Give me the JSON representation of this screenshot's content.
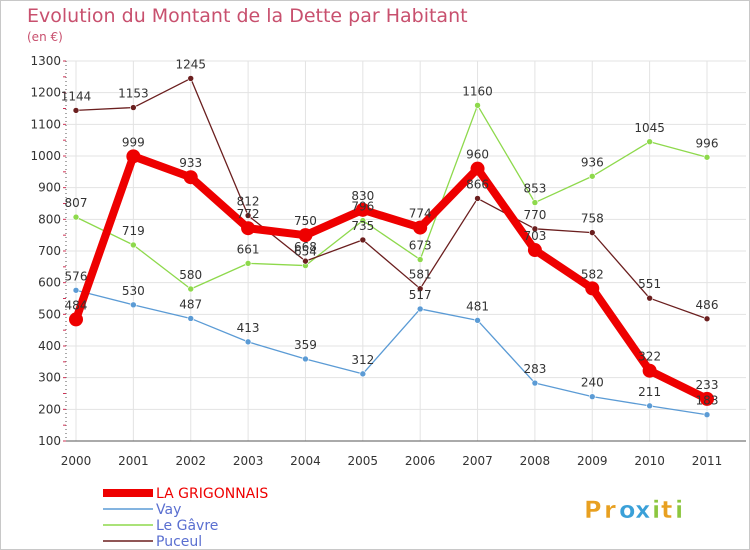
{
  "chart_data": {
    "type": "line",
    "title": "Evolution du Montant de la Dette par Habitant",
    "subtitle": "(en €)",
    "xlabel": "",
    "ylabel": "",
    "categories": [
      "2000",
      "2001",
      "2002",
      "2003",
      "2004",
      "2005",
      "2006",
      "2007",
      "2008",
      "2009",
      "2010",
      "2011"
    ],
    "ylim": [
      100,
      1300
    ],
    "yticks": [
      100,
      200,
      300,
      400,
      500,
      600,
      700,
      800,
      900,
      1000,
      1100,
      1200,
      1300
    ],
    "grid": true,
    "legend_position": "bottom-left",
    "series": [
      {
        "name": "LA GRIGONNAIS",
        "color": "#ee0000",
        "values": [
          484,
          999,
          933,
          772,
          750,
          830,
          774,
          960,
          703,
          582,
          322,
          233
        ]
      },
      {
        "name": "Vay",
        "color": "#5b9bd5",
        "values": [
          576,
          530,
          487,
          413,
          359,
          312,
          517,
          481,
          283,
          240,
          211,
          183
        ]
      },
      {
        "name": "Le Gâvre",
        "color": "#8ed94c",
        "values": [
          807,
          719,
          580,
          661,
          654,
          796,
          673,
          1160,
          853,
          936,
          1045,
          996
        ]
      },
      {
        "name": "Puceul",
        "color": "#6b1f1f",
        "values": [
          1144,
          1153,
          1245,
          812,
          668,
          735,
          581,
          866,
          770,
          758,
          551,
          486
        ]
      }
    ]
  },
  "logo": {
    "text": "Proxiti",
    "letters": [
      "P",
      "r",
      "o",
      "x",
      "i",
      "t",
      "i"
    ]
  }
}
